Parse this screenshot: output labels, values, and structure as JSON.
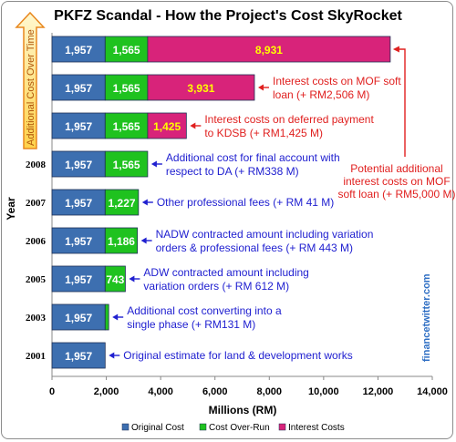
{
  "chart_data": {
    "type": "bar",
    "stacked": true,
    "orientation": "horizontal",
    "title": "PKFZ Scandal - How the Project's Cost SkyRocket",
    "xlabel": "Millions (RM)",
    "ylabel": "Year",
    "xlim": [
      0,
      14000
    ],
    "x_ticks": [
      "0",
      "2,000",
      "4,000",
      "6,000",
      "8,000",
      "10,000",
      "12,000",
      "14,000"
    ],
    "legend_position": "bottom",
    "grid": false,
    "categories": [
      "",
      "",
      "",
      "2008",
      "2007",
      "2006",
      "2005",
      "2003",
      "2001"
    ],
    "series": [
      {
        "name": "Original Cost",
        "color": "#3d6fb0",
        "values": [
          1957,
          1957,
          1957,
          1957,
          1957,
          1957,
          1957,
          1957,
          1957
        ],
        "labels": [
          "1,957",
          "1,957",
          "1,957",
          "1,957",
          "1,957",
          "1,957",
          "1,957",
          "1,957",
          "1,957"
        ]
      },
      {
        "name": "Cost Over-Run",
        "color": "#1fc21f",
        "values": [
          1565,
          1565,
          1565,
          1565,
          1227,
          1186,
          743,
          131,
          null
        ],
        "labels": [
          "1,565",
          "1,565",
          "1,565",
          "1,565",
          "1,227",
          "1,186",
          "743",
          "",
          ""
        ]
      },
      {
        "name": "Interest Costs",
        "color": "#d8237a",
        "values": [
          8931,
          3931,
          1425,
          null,
          null,
          null,
          null,
          null,
          null
        ],
        "labels": [
          "8,931",
          "3,931",
          "1,425",
          "",
          "",
          "",
          "",
          "",
          ""
        ]
      }
    ],
    "annotations": [
      {
        "row": 1,
        "color": "#e0201f",
        "lines": [
          "Interest costs on MOF soft",
          "loan (+ RM2,506 M)"
        ]
      },
      {
        "row": 2,
        "color": "#e0201f",
        "lines": [
          "Interest costs on deferred payment",
          "to KDSB (+ RM1,425 M)"
        ]
      },
      {
        "row": 3,
        "color": "#2020d0",
        "lines": [
          "Additional cost for final account with",
          "respect to DA (+ RM338 M)"
        ]
      },
      {
        "row": 4,
        "color": "#2020d0",
        "lines": [
          "Other professional fees (+ RM 41 M)"
        ]
      },
      {
        "row": 5,
        "color": "#2020d0",
        "lines": [
          "NADW contracted amount including variation",
          "orders & professional fees (+ RM 443 M)"
        ]
      },
      {
        "row": 6,
        "color": "#2020d0",
        "lines": [
          "ADW contracted amount including",
          "variation orders (+ RM 612 M)"
        ]
      },
      {
        "row": 7,
        "color": "#2020d0",
        "lines": [
          "Additional cost converting into a",
          "single phase (+ RM131 M)"
        ]
      },
      {
        "row": 8,
        "color": "#2020d0",
        "lines": [
          "Original estimate for land & development works"
        ]
      }
    ],
    "side_note": {
      "color": "#e0201f",
      "lines": [
        "Potential additional",
        "interest costs on MOF",
        "soft loan (+ RM5,000 M)"
      ]
    },
    "arrow_label": "Additional Cost Over Time",
    "watermark": "financetwitter.com"
  }
}
